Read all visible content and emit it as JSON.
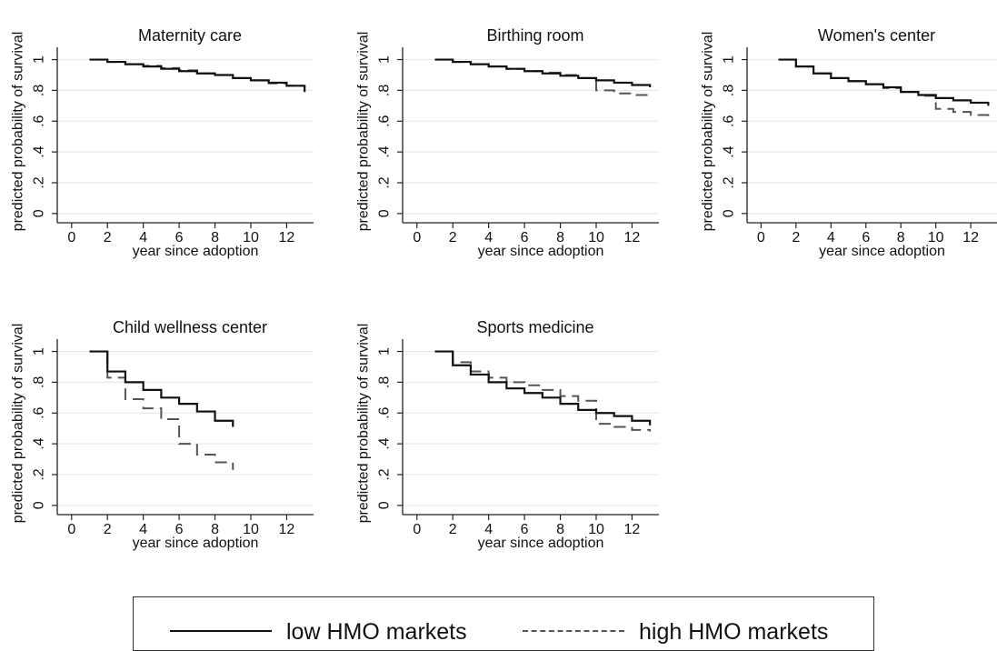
{
  "chart_data": [
    {
      "type": "line",
      "title": "Maternity care",
      "xlabel": "year since adoption",
      "ylabel": "predicted probability of survival",
      "xticks": [
        "0",
        "2",
        "4",
        "6",
        "8",
        "10",
        "12"
      ],
      "yticks": [
        "0",
        ".2",
        ".4",
        ".6",
        ".8",
        "1"
      ],
      "xlim": [
        -0.8,
        13.5
      ],
      "ylim": [
        -0.06,
        1.08
      ],
      "grid": true,
      "series": [
        {
          "name": "low HMO markets",
          "style": "solid",
          "color": "#111111",
          "x": [
            1,
            2,
            3,
            4,
            5,
            6,
            7,
            8,
            9,
            10,
            11,
            12,
            13
          ],
          "y": [
            1.0,
            0.985,
            0.97,
            0.955,
            0.94,
            0.925,
            0.91,
            0.9,
            0.88,
            0.865,
            0.85,
            0.83,
            0.79
          ]
        },
        {
          "name": "high HMO markets",
          "style": "dashed",
          "color": "#555555",
          "x": [
            1,
            2,
            3,
            4,
            5,
            6,
            7,
            8,
            9,
            10,
            11,
            12,
            13
          ],
          "y": [
            1.0,
            0.985,
            0.97,
            0.96,
            0.945,
            0.93,
            0.91,
            0.9,
            0.88,
            0.865,
            0.845,
            0.83,
            0.8
          ]
        }
      ]
    },
    {
      "type": "line",
      "title": "Birthing room",
      "xlabel": "year since adoption",
      "ylabel": "predicted probability of survival",
      "xticks": [
        "0",
        "2",
        "4",
        "6",
        "8",
        "10",
        "12"
      ],
      "yticks": [
        "0",
        ".2",
        ".4",
        ".6",
        ".8",
        "1"
      ],
      "xlim": [
        -0.8,
        13.5
      ],
      "ylim": [
        -0.06,
        1.08
      ],
      "grid": true,
      "series": [
        {
          "name": "low HMO markets",
          "style": "solid",
          "color": "#111111",
          "x": [
            1,
            2,
            3,
            4,
            5,
            6,
            7,
            8,
            9,
            10,
            11,
            12,
            13
          ],
          "y": [
            1.0,
            0.985,
            0.97,
            0.955,
            0.94,
            0.925,
            0.91,
            0.895,
            0.88,
            0.865,
            0.85,
            0.835,
            0.82
          ]
        },
        {
          "name": "high HMO markets",
          "style": "dashed",
          "color": "#555555",
          "x": [
            1,
            2,
            3,
            4,
            5,
            6,
            7,
            8,
            9,
            10,
            11,
            12,
            13
          ],
          "y": [
            1.0,
            0.985,
            0.97,
            0.955,
            0.94,
            0.925,
            0.915,
            0.9,
            0.88,
            0.8,
            0.78,
            0.77,
            0.76
          ]
        }
      ]
    },
    {
      "type": "line",
      "title": "Women's center",
      "xlabel": "year since adoption",
      "ylabel": "predicted probability of survival",
      "xticks": [
        "0",
        "2",
        "4",
        "6",
        "8",
        "10",
        "12"
      ],
      "yticks": [
        "0",
        ".2",
        ".4",
        ".6",
        ".8",
        "1"
      ],
      "xlim": [
        -0.8,
        13.5
      ],
      "ylim": [
        -0.06,
        1.08
      ],
      "grid": true,
      "series": [
        {
          "name": "low HMO markets",
          "style": "solid",
          "color": "#111111",
          "x": [
            1,
            2,
            3,
            4,
            5,
            6,
            7,
            8,
            9,
            10,
            11,
            12,
            13
          ],
          "y": [
            1.0,
            0.955,
            0.91,
            0.88,
            0.86,
            0.84,
            0.82,
            0.79,
            0.77,
            0.75,
            0.735,
            0.72,
            0.7
          ]
        },
        {
          "name": "high HMO markets",
          "style": "dashed",
          "color": "#555555",
          "x": [
            1,
            2,
            3,
            4,
            5,
            6,
            7,
            8,
            9,
            10,
            11,
            12,
            13
          ],
          "y": [
            1.0,
            0.955,
            0.91,
            0.88,
            0.86,
            0.84,
            0.815,
            0.79,
            0.765,
            0.68,
            0.66,
            0.64,
            0.62
          ]
        }
      ]
    },
    {
      "type": "line",
      "title": "Child wellness center",
      "xlabel": "year since adoption",
      "ylabel": "predicted probability of survival",
      "xticks": [
        "0",
        "2",
        "4",
        "6",
        "8",
        "10",
        "12"
      ],
      "yticks": [
        "0",
        ".2",
        ".4",
        ".6",
        ".8",
        "1"
      ],
      "xlim": [
        -0.8,
        13.5
      ],
      "ylim": [
        -0.06,
        1.08
      ],
      "grid": true,
      "series": [
        {
          "name": "low HMO markets",
          "style": "solid",
          "color": "#111111",
          "x": [
            1,
            2,
            3,
            4,
            5,
            6,
            7,
            8,
            9
          ],
          "y": [
            1.0,
            0.87,
            0.8,
            0.75,
            0.7,
            0.66,
            0.61,
            0.55,
            0.51
          ]
        },
        {
          "name": "high HMO markets",
          "style": "dashed",
          "color": "#555555",
          "x": [
            1,
            2,
            3,
            4,
            5,
            6,
            7,
            8,
            9
          ],
          "y": [
            1.0,
            0.83,
            0.69,
            0.63,
            0.56,
            0.4,
            0.33,
            0.28,
            0.23
          ]
        }
      ]
    },
    {
      "type": "line",
      "title": "Sports medicine",
      "xlabel": "year since adoption",
      "ylabel": "predicted probability of survival",
      "xticks": [
        "0",
        "2",
        "4",
        "6",
        "8",
        "10",
        "12"
      ],
      "yticks": [
        "0",
        ".2",
        ".4",
        ".6",
        ".8",
        "1"
      ],
      "xlim": [
        -0.8,
        13.5
      ],
      "ylim": [
        -0.06,
        1.08
      ],
      "grid": true,
      "series": [
        {
          "name": "low HMO markets",
          "style": "solid",
          "color": "#111111",
          "x": [
            1,
            2,
            3,
            4,
            5,
            6,
            7,
            8,
            9,
            10,
            11,
            12,
            13
          ],
          "y": [
            1.0,
            0.91,
            0.85,
            0.8,
            0.76,
            0.73,
            0.7,
            0.66,
            0.62,
            0.6,
            0.58,
            0.55,
            0.52
          ]
        },
        {
          "name": "high HMO markets",
          "style": "dashed",
          "color": "#555555",
          "x": [
            1,
            2,
            3,
            4,
            5,
            6,
            7,
            8,
            9,
            10,
            11,
            12,
            13
          ],
          "y": [
            1.0,
            0.93,
            0.87,
            0.83,
            0.8,
            0.78,
            0.75,
            0.71,
            0.68,
            0.53,
            0.51,
            0.49,
            0.48
          ]
        }
      ]
    }
  ],
  "legend": {
    "placement": "bottom",
    "entries": [
      {
        "label": "low HMO markets",
        "style": "solid"
      },
      {
        "label": "high HMO markets",
        "style": "dashed"
      }
    ]
  }
}
